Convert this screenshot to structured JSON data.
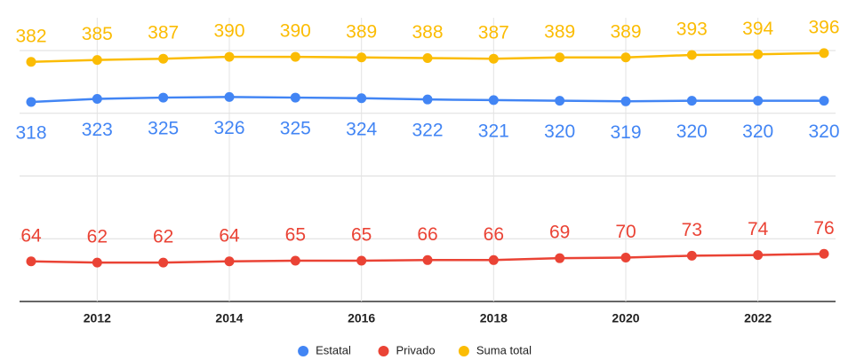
{
  "chart_data": {
    "type": "line",
    "x": [
      2011,
      2012,
      2013,
      2014,
      2015,
      2016,
      2017,
      2018,
      2019,
      2020,
      2021,
      2022,
      2023
    ],
    "xlim": [
      2011,
      2023
    ],
    "xticks": [
      2012,
      2014,
      2016,
      2018,
      2020,
      2022
    ],
    "ylim": [
      0,
      400
    ],
    "yticks": [
      0,
      100,
      200,
      300,
      400
    ],
    "grid": true,
    "legend": "bottom",
    "series": [
      {
        "name": "Estatal",
        "color": "#4285f4",
        "values": [
          318,
          323,
          325,
          326,
          325,
          324,
          322,
          321,
          320,
          319,
          320,
          320,
          320
        ]
      },
      {
        "name": "Privado",
        "color": "#ea4335",
        "values": [
          64,
          62,
          62,
          64,
          65,
          65,
          66,
          66,
          69,
          70,
          73,
          74,
          76
        ]
      },
      {
        "name": "Suma total",
        "color": "#fbbc04",
        "values": [
          382,
          385,
          387,
          390,
          390,
          389,
          388,
          387,
          389,
          389,
          393,
          394,
          396
        ]
      }
    ]
  }
}
